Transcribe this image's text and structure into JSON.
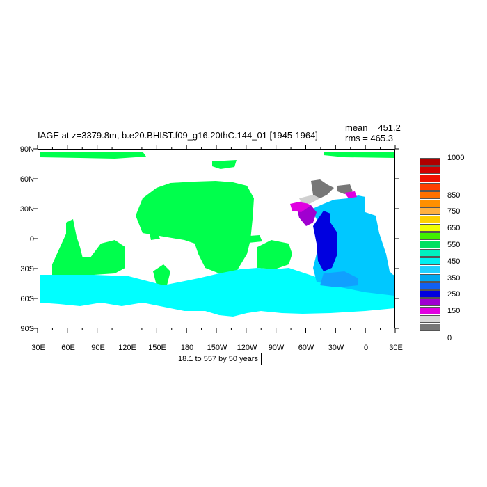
{
  "title": "IAGE at z=3379.8m, b.e20.BHIST.f09_g16.20thC.144_01 [1945-1964]",
  "stats": {
    "mean": "mean = 451.2",
    "rms": "rms = 465.3"
  },
  "range_note": "18.1 to 557 by 50 years",
  "axes": {
    "lat_labels": [
      "90N",
      "60N",
      "30N",
      "0",
      "30S",
      "60S",
      "90S"
    ],
    "lon_labels": [
      "30E",
      "60E",
      "90E",
      "120E",
      "150E",
      "180",
      "150W",
      "120W",
      "90W",
      "60W",
      "30W",
      "0",
      "30E"
    ]
  },
  "colorbar": {
    "colors": [
      "#777777",
      "#d8d8d8",
      "#e000e0",
      "#a000d0",
      "#0000e0",
      "#1060f0",
      "#00a8f0",
      "#20d0ff",
      "#00f0f0",
      "#00f0c0",
      "#00e060",
      "#40f000",
      "#f0ff00",
      "#ffd000",
      "#ffb040",
      "#ff9000",
      "#ff7000",
      "#ff4000",
      "#f01000",
      "#d00000",
      "#b00000"
    ],
    "labels": [
      "0",
      "150",
      "250",
      "350",
      "450",
      "550",
      "650",
      "750",
      "850",
      "1000"
    ]
  },
  "map_colors": {
    "green": "#00ff4c",
    "cyan": "#00ffff",
    "light_blue": "#00c8ff",
    "mid_blue": "#10a0ff",
    "blue": "#0000e0",
    "purple": "#a000d0",
    "magenta": "#e000e0",
    "dark_gray": "#777777",
    "light_gray": "#d0d0d0"
  }
}
